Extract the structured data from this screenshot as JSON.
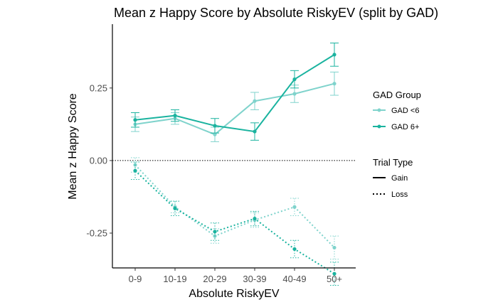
{
  "chart_data": {
    "type": "line",
    "title": "Mean z Happy Score by Absolute RiskyEV (split by GAD)",
    "xlabel": "Absolute RiskyEV",
    "ylabel": "Mean z Happy Score",
    "categories": [
      "0-9",
      "10-19",
      "20-29",
      "30-39",
      "40-49",
      "50+"
    ],
    "ylim": [
      -0.37,
      0.47
    ],
    "yticks": [
      0.25,
      0.0,
      -0.25
    ],
    "ytick_labels": [
      "0.25",
      "0.00",
      "-0.25"
    ],
    "reference_line": 0.0,
    "grid": false,
    "legend_placement": "right",
    "legends": [
      {
        "title": "GAD Group",
        "entries": [
          {
            "label": "GAD <6",
            "color": "#7fd3cc"
          },
          {
            "label": "GAD 6+",
            "color": "#1ab39f"
          }
        ]
      },
      {
        "title": "Trial Type",
        "entries": [
          {
            "label": "Gain",
            "linestyle": "solid"
          },
          {
            "label": "Loss",
            "linestyle": "dotted"
          }
        ]
      }
    ],
    "series": [
      {
        "group": "GAD <6",
        "trial": "Gain",
        "color": "#7fd3cc",
        "linestyle": "solid",
        "values": [
          0.125,
          0.145,
          0.09,
          0.205,
          0.23,
          0.265
        ],
        "errors": [
          0.025,
          0.02,
          0.025,
          0.03,
          0.03,
          0.04
        ]
      },
      {
        "group": "GAD 6+",
        "trial": "Gain",
        "color": "#1ab39f",
        "linestyle": "solid",
        "values": [
          0.14,
          0.155,
          0.12,
          0.1,
          0.28,
          0.365
        ],
        "errors": [
          0.025,
          0.02,
          0.025,
          0.03,
          0.03,
          0.04
        ]
      },
      {
        "group": "GAD <6",
        "trial": "Loss",
        "color": "#7fd3cc",
        "linestyle": "dotted",
        "values": [
          -0.015,
          -0.16,
          -0.26,
          -0.205,
          -0.16,
          -0.3
        ],
        "errors": [
          0.025,
          0.02,
          0.025,
          0.025,
          0.03,
          0.04
        ]
      },
      {
        "group": "GAD 6+",
        "trial": "Loss",
        "color": "#1ab39f",
        "linestyle": "dotted",
        "values": [
          -0.035,
          -0.165,
          -0.245,
          -0.2,
          -0.305,
          -0.39
        ],
        "errors": [
          0.03,
          0.025,
          0.03,
          0.025,
          0.03,
          0.04
        ]
      }
    ]
  }
}
